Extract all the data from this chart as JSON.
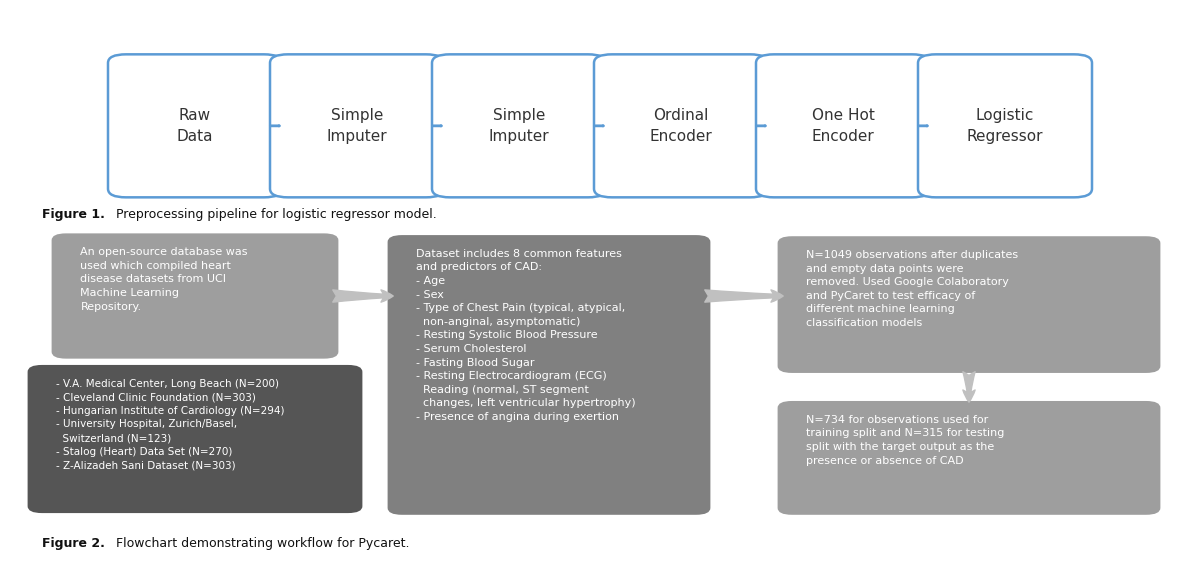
{
  "fig1_boxes": [
    {
      "label": "Raw\nData"
    },
    {
      "label": "Simple\nImputer"
    },
    {
      "label": "Simple\nImputer"
    },
    {
      "label": "Ordinal\nEncoder"
    },
    {
      "label": "One Hot\nEncoder"
    },
    {
      "label": "Logistic\nRegressor"
    }
  ],
  "fig1_box_color": "#ffffff",
  "fig1_box_edge_color": "#5b9bd5",
  "fig1_arrow_color": "#5b9bd5",
  "fig1_caption_bold": "Figure 1.",
  "fig1_caption_rest": " Preprocessing pipeline for logistic regressor model.",
  "fig2_caption_bold": "Figure 2.",
  "fig2_caption_rest": " Flowchart demonstrating workflow for Pycaret.",
  "box_top_left_text": "An open-source database was\nused which compiled heart\ndisease datasets from UCI\nMachine Learning\nRepository.",
  "box_top_left_color": "#9e9e9e",
  "box_bot_left_text": "- V.A. Medical Center, Long Beach (N=200)\n- Cleveland Clinic Foundation (N=303)\n- Hungarian Institute of Cardiology (N=294)\n- University Hospital, Zurich/Basel,\n  Switzerland (N=123)\n- Stalog (Heart) Data Set (N=270)\n- Z-Alizadeh Sani Dataset (N=303)",
  "box_bot_left_color": "#555555",
  "box_mid_text": "Dataset includes 8 common features\nand predictors of CAD:\n- Age\n- Sex\n- Type of Chest Pain (typical, atypical,\n  non-anginal, asymptomatic)\n- Resting Systolic Blood Pressure\n- Serum Cholesterol\n- Fasting Blood Sugar\n- Resting Electrocardiogram (ECG)\n  Reading (normal, ST segment\n  changes, left ventricular hypertrophy)\n- Presence of angina during exertion",
  "box_mid_color": "#808080",
  "box_top_right_text": "N=1049 observations after duplicates\nand empty data points were\nremoved. Used Google Colaboratory\nand PyCaret to test efficacy of\ndifferent machine learning\nclassification models",
  "box_top_right_color": "#9e9e9e",
  "box_bot_right_text": "N=734 for observations used for\ntraining split and N=315 for testing\nsplit with the target output as the\npresence or absence of CAD",
  "box_bot_right_color": "#9e9e9e",
  "arrow_color_fig2": "#c0c0c0",
  "bg_color": "#ffffff",
  "text_color_dark": "#333333",
  "text_color_white": "#ffffff"
}
